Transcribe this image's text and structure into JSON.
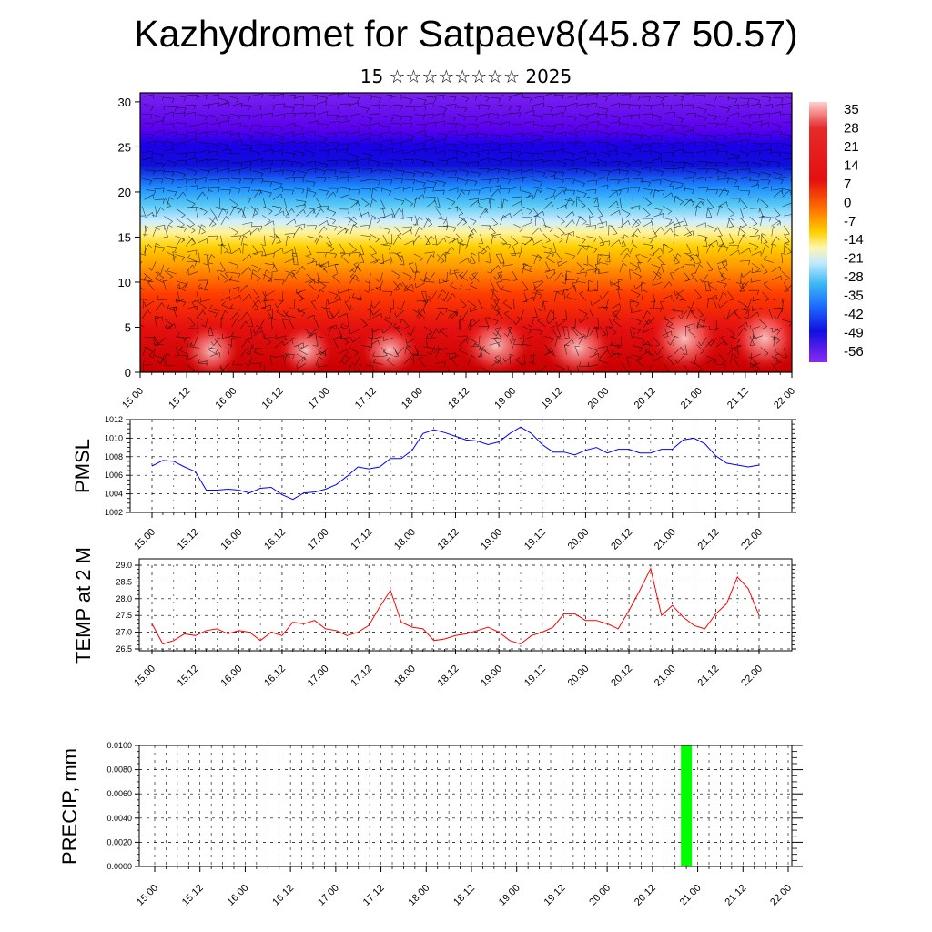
{
  "title": "Kazhydromet for Satpaev8(45.87 50.57)",
  "subtitle": "15 ☆☆☆☆☆☆☆☆ 2025",
  "time_ticks": [
    "15.00",
    "15.12",
    "16.00",
    "16.12",
    "17.00",
    "17.12",
    "18.00",
    "18.12",
    "19.00",
    "19.12",
    "20.00",
    "20.12",
    "21.00",
    "21.12",
    "22.00"
  ],
  "chart_data": [
    {
      "type": "heatmap",
      "id": "temperature-section",
      "ylim": [
        0,
        31
      ],
      "y_ticks": [
        "0",
        "5",
        "10",
        "15",
        "20",
        "25",
        "30"
      ],
      "colorbar": {
        "labels": [
          "35",
          "28",
          "21",
          "14",
          "7",
          "0",
          "-7",
          "-14",
          "-21",
          "-28",
          "-35",
          "-42",
          "-49",
          "-56"
        ],
        "range": [
          -56,
          35
        ]
      },
      "overlay": "wind barbs",
      "description_levels": [
        {
          "y": 0,
          "value": 24
        },
        {
          "y": 5,
          "value": 20
        },
        {
          "y": 10,
          "value": 10
        },
        {
          "y": 13,
          "value": 0
        },
        {
          "y": 15,
          "value": -8
        },
        {
          "y": 17,
          "value": -15
        },
        {
          "y": 20,
          "value": -35
        },
        {
          "y": 23,
          "value": -50
        },
        {
          "y": 25,
          "value": -58
        },
        {
          "y": 28,
          "value": -52
        },
        {
          "y": 31,
          "value": -48
        }
      ]
    },
    {
      "type": "line",
      "id": "pmsl",
      "ylabel": "PMSL",
      "color": "#0000ff",
      "ylim": [
        1002,
        1012
      ],
      "y_ticks": [
        "1012",
        "1010",
        "1008",
        "1006",
        "1004",
        "1002"
      ],
      "x": [
        0,
        3,
        6,
        9,
        12,
        15,
        18,
        21,
        24,
        27,
        30,
        33,
        36,
        39,
        42,
        45,
        48,
        51,
        54,
        57,
        60,
        63,
        66,
        69,
        72,
        75,
        78,
        81,
        84,
        87,
        90,
        93,
        96,
        99,
        102,
        105,
        108,
        111,
        114,
        117,
        120,
        123,
        126,
        129,
        132,
        135,
        138,
        141,
        144,
        147,
        150,
        153,
        156,
        159,
        162,
        165,
        168
      ],
      "values": [
        1007.0,
        1007.6,
        1007.5,
        1006.9,
        1006.4,
        1004.4,
        1004.4,
        1004.5,
        1004.4,
        1004.1,
        1004.6,
        1004.7,
        1003.9,
        1003.4,
        1004.1,
        1004.2,
        1004.5,
        1005.0,
        1005.9,
        1006.9,
        1006.7,
        1006.9,
        1007.8,
        1007.8,
        1008.7,
        1010.5,
        1010.9,
        1010.6,
        1010.2,
        1009.8,
        1009.7,
        1009.3,
        1009.6,
        1010.5,
        1011.2,
        1010.5,
        1009.3,
        1008.5,
        1008.5,
        1008.2,
        1008.7,
        1009.0,
        1008.4,
        1008.8,
        1008.8,
        1008.4,
        1008.4,
        1008.8,
        1008.8,
        1009.8,
        1010.0,
        1009.4,
        1008.1,
        1007.3,
        1007.1,
        1006.9,
        1007.1
      ]
    },
    {
      "type": "line",
      "id": "temp-2m",
      "ylabel": "TEMP at 2 M",
      "color": "#ff0000",
      "ylim": [
        26.5,
        29.0
      ],
      "y_ticks": [
        "29.0",
        "28.5",
        "28.0",
        "27.5",
        "27.0",
        "26.5"
      ],
      "x": [
        0,
        3,
        6,
        9,
        12,
        15,
        18,
        21,
        24,
        27,
        30,
        33,
        36,
        39,
        42,
        45,
        48,
        51,
        54,
        57,
        60,
        63,
        66,
        69,
        72,
        75,
        78,
        81,
        84,
        87,
        90,
        93,
        96,
        99,
        102,
        105,
        108,
        111,
        114,
        117,
        120,
        123,
        126,
        129,
        132,
        135,
        138,
        141,
        144,
        147,
        150,
        153,
        156,
        159,
        162,
        165,
        168
      ],
      "values": [
        27.25,
        26.65,
        26.75,
        26.95,
        26.9,
        27.05,
        27.1,
        26.95,
        27.05,
        27.0,
        26.75,
        27.0,
        26.9,
        27.3,
        27.25,
        27.35,
        27.1,
        27.05,
        26.9,
        27.0,
        27.2,
        27.75,
        28.25,
        27.3,
        27.15,
        27.1,
        26.75,
        26.8,
        26.9,
        26.95,
        27.05,
        27.15,
        27.0,
        26.75,
        26.65,
        26.9,
        27.0,
        27.15,
        27.55,
        27.55,
        27.35,
        27.35,
        27.25,
        27.1,
        27.65,
        28.25,
        28.9,
        27.5,
        27.8,
        27.45,
        27.2,
        27.1,
        27.55,
        27.85,
        28.65,
        28.3,
        27.5
      ]
    },
    {
      "type": "bar",
      "id": "precip",
      "ylabel": "PRECIP, mm",
      "color": "#00ff00",
      "ylim": [
        0,
        0.01
      ],
      "y_ticks": [
        "0.0100",
        "0.0080",
        "0.0060",
        "0.0040",
        "0.0020",
        "0.0000"
      ],
      "bars": [
        {
          "x": 141,
          "value": 0.01
        }
      ]
    }
  ]
}
